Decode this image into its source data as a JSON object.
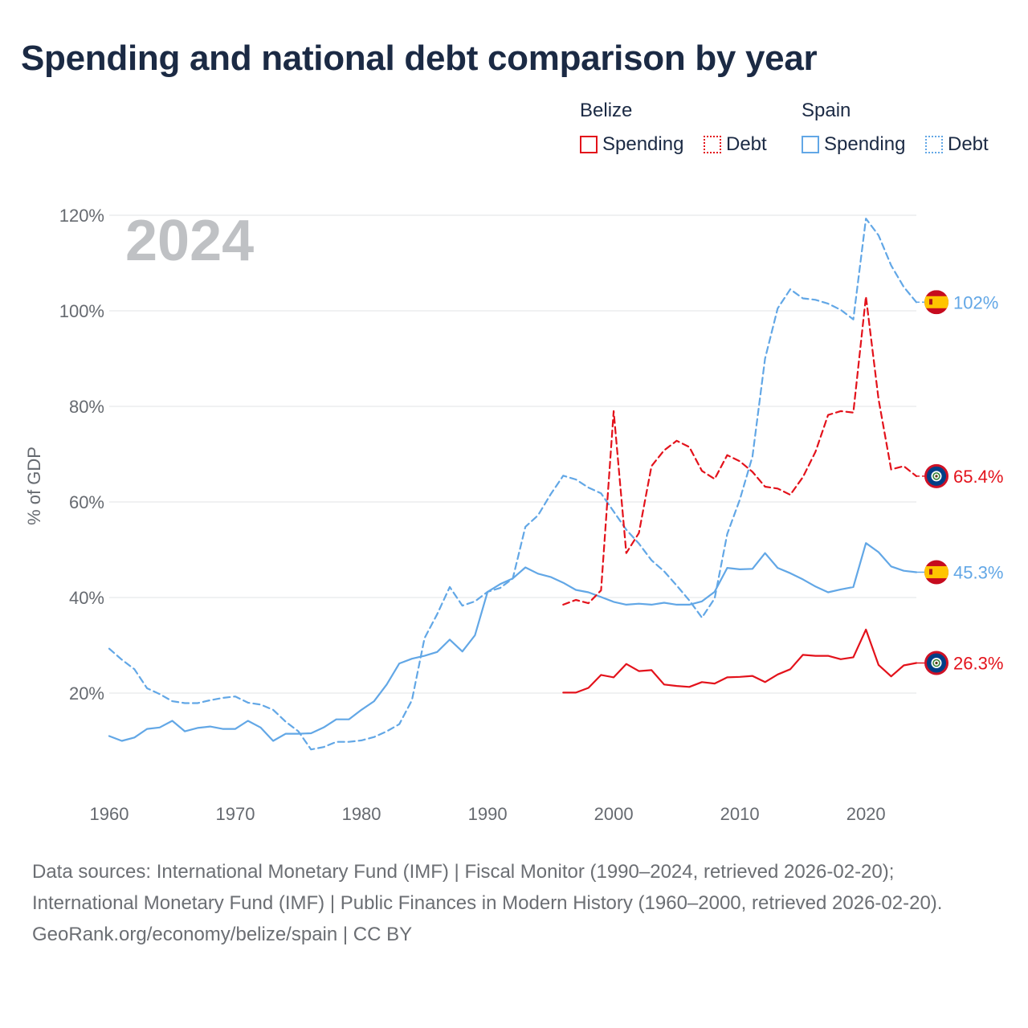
{
  "title": "Spending and national debt comparison by year",
  "legend": {
    "groups": [
      {
        "name": "Belize",
        "color": "#e3121b",
        "items": [
          {
            "label": "Spending",
            "style": "solid"
          },
          {
            "label": "Debt",
            "style": "dotted"
          }
        ]
      },
      {
        "name": "Spain",
        "color": "#62a7e6",
        "items": [
          {
            "label": "Spending",
            "style": "solid"
          },
          {
            "label": "Debt",
            "style": "dotted"
          }
        ]
      }
    ]
  },
  "footer": {
    "sources": "Data sources: International Monetary Fund (IMF) | Fiscal Monitor (1990–2024, retrieved 2026-02-20); International Monetary Fund (IMF) | Public Finances in Modern History (1960–2000, retrieved 2026-02-20).",
    "credit": "GeoRank.org/economy/belize/spain | CC BY"
  },
  "chart_data": {
    "type": "line",
    "title": "Spending and national debt comparison by year",
    "ylabel": "% of GDP",
    "xlabel": "",
    "year_label": "2024",
    "xlim": [
      1960,
      2024
    ],
    "ylim": [
      0,
      120
    ],
    "x_ticks": [
      1960,
      1970,
      1980,
      1990,
      2000,
      2010,
      2020
    ],
    "y_ticks": [
      20,
      40,
      60,
      80,
      100,
      120
    ],
    "y_tick_labels": [
      "20%",
      "40%",
      "60%",
      "80%",
      "100%",
      "120%"
    ],
    "grid": true,
    "series": [
      {
        "name": "Spain Debt",
        "country": "Spain",
        "metric": "Debt",
        "color": "#62a7e6",
        "dash": "dashed",
        "end_label": "102%",
        "x": [
          1960,
          1961,
          1962,
          1963,
          1964,
          1965,
          1966,
          1967,
          1968,
          1969,
          1970,
          1971,
          1972,
          1973,
          1974,
          1975,
          1976,
          1977,
          1978,
          1979,
          1980,
          1981,
          1982,
          1983,
          1984,
          1985,
          1986,
          1987,
          1988,
          1989,
          1990,
          1991,
          1992,
          1993,
          1994,
          1995,
          1996,
          1997,
          1998,
          1999,
          2000,
          2001,
          2002,
          2003,
          2004,
          2005,
          2006,
          2007,
          2008,
          2009,
          2010,
          2011,
          2012,
          2013,
          2014,
          2015,
          2016,
          2017,
          2018,
          2019,
          2020,
          2021,
          2022,
          2023,
          2024
        ],
        "values": [
          29.3,
          27,
          25,
          21,
          19.8,
          18.3,
          17.9,
          17.9,
          18.5,
          19,
          19.3,
          18,
          17.6,
          16.5,
          14,
          12,
          8.2,
          8.7,
          9.8,
          9.8,
          10.1,
          10.8,
          12,
          13.5,
          18.5,
          31.5,
          36.5,
          42.2,
          38.3,
          39.2,
          41.2,
          42,
          44,
          54.8,
          57.2,
          61.6,
          65.5,
          64.7,
          63,
          61.8,
          58,
          54.2,
          51.3,
          47.8,
          45.5,
          42.5,
          39.4,
          35.8,
          39.8,
          53.3,
          60.5,
          69.5,
          90,
          100.5,
          104.5,
          102.6,
          102.3,
          101.5,
          100.2,
          98.2,
          119.3,
          115.8,
          109.5,
          105,
          101.8
        ]
      },
      {
        "name": "Spain Spending",
        "country": "Spain",
        "metric": "Spending",
        "color": "#62a7e6",
        "dash": "solid",
        "end_label": "45.3%",
        "x": [
          1960,
          1961,
          1962,
          1963,
          1964,
          1965,
          1966,
          1967,
          1968,
          1969,
          1970,
          1971,
          1972,
          1973,
          1974,
          1975,
          1976,
          1977,
          1978,
          1979,
          1980,
          1981,
          1982,
          1983,
          1984,
          1985,
          1986,
          1987,
          1988,
          1989,
          1990,
          1991,
          1992,
          1993,
          1994,
          1995,
          1996,
          1997,
          1998,
          1999,
          2000,
          2001,
          2002,
          2003,
          2004,
          2005,
          2006,
          2007,
          2008,
          2009,
          2010,
          2011,
          2012,
          2013,
          2014,
          2015,
          2016,
          2017,
          2018,
          2019,
          2020,
          2021,
          2022,
          2023,
          2024
        ],
        "values": [
          11,
          10,
          10.7,
          12.5,
          12.8,
          14.2,
          12,
          12.7,
          13,
          12.5,
          12.5,
          14.2,
          12.8,
          10,
          11.5,
          11.5,
          11.6,
          12.8,
          14.5,
          14.5,
          16.5,
          18.3,
          21.8,
          26.2,
          27.2,
          27.8,
          28.6,
          31.2,
          28.7,
          32.1,
          41.2,
          42.8,
          44,
          46.3,
          45,
          44.3,
          43.1,
          41.6,
          41.1,
          40.1,
          39.1,
          38.5,
          38.7,
          38.5,
          38.9,
          38.5,
          38.5,
          39.2,
          41.2,
          46.2,
          45.9,
          46,
          49.3,
          46.2,
          45.1,
          43.8,
          42.3,
          41.1,
          41.7,
          42.2,
          51.4,
          49.5,
          46.5,
          45.6,
          45.3
        ]
      },
      {
        "name": "Belize Debt",
        "country": "Belize",
        "metric": "Debt",
        "color": "#e3121b",
        "dash": "dashed",
        "end_label": "65.4%",
        "x": [
          1996,
          1997,
          1998,
          1999,
          2000,
          2001,
          2002,
          2003,
          2004,
          2005,
          2006,
          2007,
          2008,
          2009,
          2010,
          2011,
          2012,
          2013,
          2014,
          2015,
          2016,
          2017,
          2018,
          2019,
          2020,
          2021,
          2022,
          2023,
          2024
        ],
        "values": [
          38.5,
          39.5,
          38.8,
          41.5,
          79,
          49.3,
          53.5,
          67.5,
          70.8,
          72.8,
          71.5,
          66.5,
          64.8,
          69.8,
          68.5,
          66.3,
          63.2,
          62.8,
          61.5,
          65.2,
          70.5,
          78.2,
          79,
          78.7,
          103,
          81.5,
          66.8,
          67.5,
          65.4
        ]
      },
      {
        "name": "Belize Spending",
        "country": "Belize",
        "metric": "Spending",
        "color": "#e3121b",
        "dash": "solid",
        "end_label": "26.3%",
        "x": [
          1996,
          1997,
          1998,
          1999,
          2000,
          2001,
          2002,
          2003,
          2004,
          2005,
          2006,
          2007,
          2008,
          2009,
          2010,
          2011,
          2012,
          2013,
          2014,
          2015,
          2016,
          2017,
          2018,
          2019,
          2020,
          2021,
          2022,
          2023,
          2024
        ],
        "values": [
          20.1,
          20.1,
          21.1,
          23.8,
          23.3,
          26.1,
          24.6,
          24.8,
          21.8,
          21.5,
          21.3,
          22.3,
          22,
          23.3,
          23.4,
          23.6,
          22.3,
          23.9,
          25,
          28,
          27.8,
          27.8,
          27.1,
          27.5,
          33.3,
          25.9,
          23.5,
          25.8,
          26.3
        ]
      }
    ]
  },
  "flags": {
    "Spain": "spain-flag",
    "Belize": "belize-flag"
  }
}
